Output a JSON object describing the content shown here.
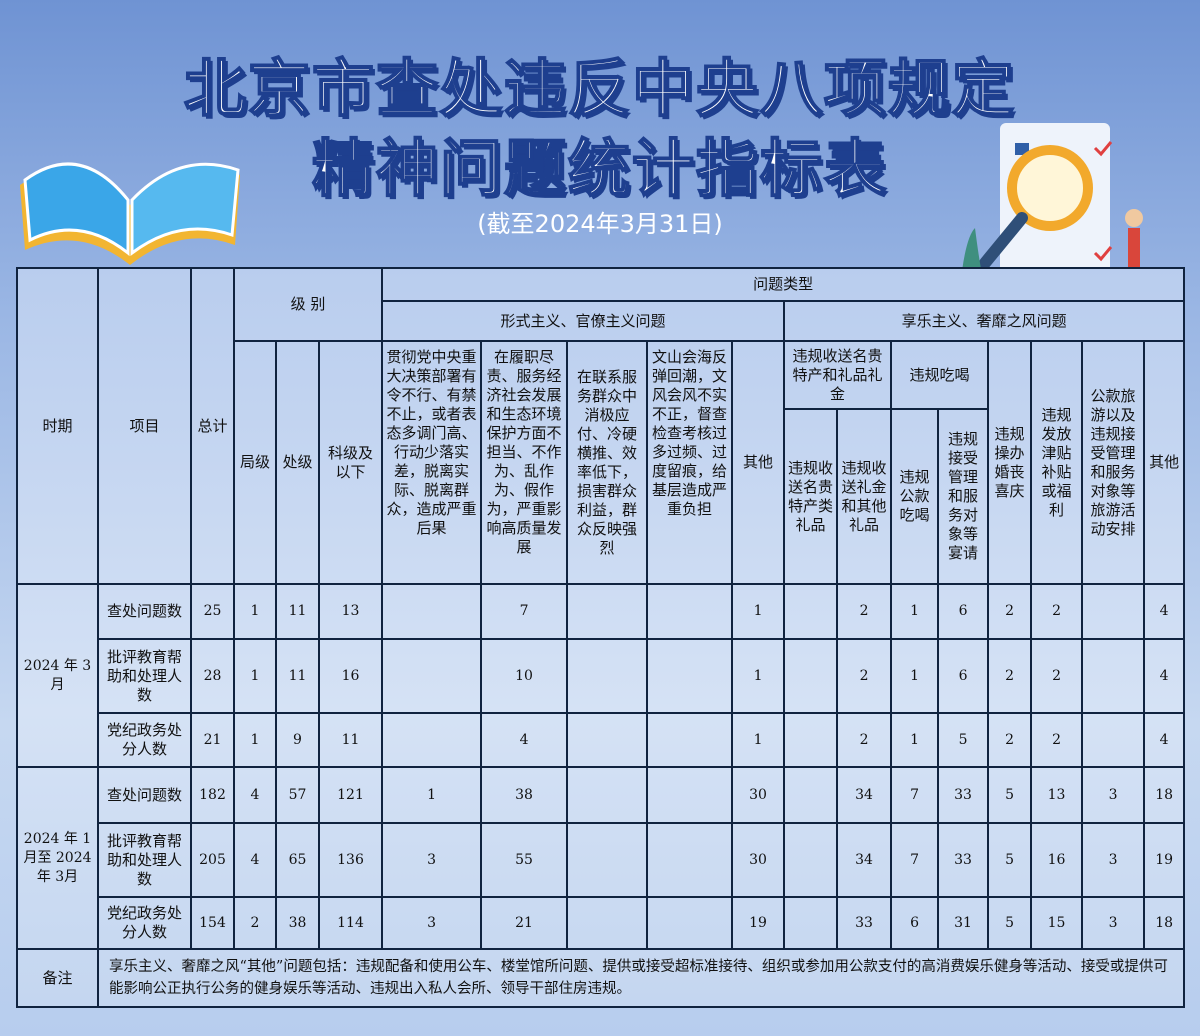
{
  "title_line1": "北京市查处违反中央八项规定",
  "title_line2": "精神问题统计指标表",
  "subtitle": "(截至2024年3月31日)",
  "header": {
    "period": "时期",
    "item": "项目",
    "total": "总计",
    "level": "级 别",
    "bureau": "局级",
    "division": "处级",
    "section": "科级及以下",
    "problem_type": "问题类型",
    "formalism": "形式主义、官僚主义问题",
    "hedonism": "享乐主义、奢靡之风问题",
    "f1": "贯彻党中央重大决策部署有令不行、有禁不止，或者表态多调门高、行动少落实差，脱离实际、脱离群众，造成严重后果",
    "f2": "在履职尽责、服务经济社会发展和生态环境保护方面不担当、不作为、乱作为、假作为，严重影响高质量发展",
    "f3": "在联系服务群众中消极应付、冷硬横推、效率低下，损害群众利益，群众反映强烈",
    "f4": "文山会海反弹回潮，文风会风不实不正，督查检查考核过多过频、过度留痕，给基层造成严重负担",
    "f_other": "其他",
    "gifts": "违规收送名贵特产和礼品礼金",
    "gifts1": "违规收送名贵特产类礼品",
    "gifts2": "违规收送礼金和其他礼品",
    "dining": "违规吃喝",
    "dining1": "违规公款吃喝",
    "dining2": "违规接受管理和服务对象等宴请",
    "weddings": "违规操办婚丧喜庆",
    "allowance": "违规发放津贴补贴或福利",
    "travel": "公款旅游以及违规接受管理和服务对象等旅游活动安排",
    "h_other": "其他"
  },
  "groups": [
    {
      "period": "2024 年 3月",
      "rows": [
        {
          "item": "查处问题数",
          "values": [
            "25",
            "1",
            "11",
            "13",
            "",
            "7",
            "",
            "",
            "1",
            "",
            "2",
            "1",
            "6",
            "2",
            "2",
            "",
            "4"
          ]
        },
        {
          "item": "批评教育帮助和处理人数",
          "values": [
            "28",
            "1",
            "11",
            "16",
            "",
            "10",
            "",
            "",
            "1",
            "",
            "2",
            "1",
            "6",
            "2",
            "2",
            "",
            "4"
          ]
        },
        {
          "item": "党纪政务处分人数",
          "values": [
            "21",
            "1",
            "9",
            "11",
            "",
            "4",
            "",
            "",
            "1",
            "",
            "2",
            "1",
            "5",
            "2",
            "2",
            "",
            "4"
          ]
        }
      ]
    },
    {
      "period": "2024 年 1月至 2024 年 3月",
      "rows": [
        {
          "item": "查处问题数",
          "values": [
            "182",
            "4",
            "57",
            "121",
            "1",
            "38",
            "",
            "",
            "30",
            "",
            "34",
            "7",
            "33",
            "5",
            "13",
            "3",
            "18"
          ]
        },
        {
          "item": "批评教育帮助和处理人数",
          "values": [
            "205",
            "4",
            "65",
            "136",
            "3",
            "55",
            "",
            "",
            "30",
            "",
            "34",
            "7",
            "33",
            "5",
            "16",
            "3",
            "19"
          ]
        },
        {
          "item": "党纪政务处分人数",
          "values": [
            "154",
            "2",
            "38",
            "114",
            "3",
            "21",
            "",
            "",
            "19",
            "",
            "33",
            "6",
            "31",
            "5",
            "15",
            "3",
            "18"
          ]
        }
      ]
    }
  ],
  "note_label": "备注",
  "note": "享乐主义、奢靡之风“其他”问题包括：违规配备和使用公车、楼堂馆所问题、提供或接受超标准接待、组织或参加用公款支付的高消费娱乐健身等活动、接受或提供可能影响公正执行公务的健身娱乐等活动、违规出入私人会所、领导干部住房违规。",
  "colors": {
    "title_stroke": "#1e3f8f",
    "border": "#10233f",
    "table_bg": "#c8daf2"
  }
}
